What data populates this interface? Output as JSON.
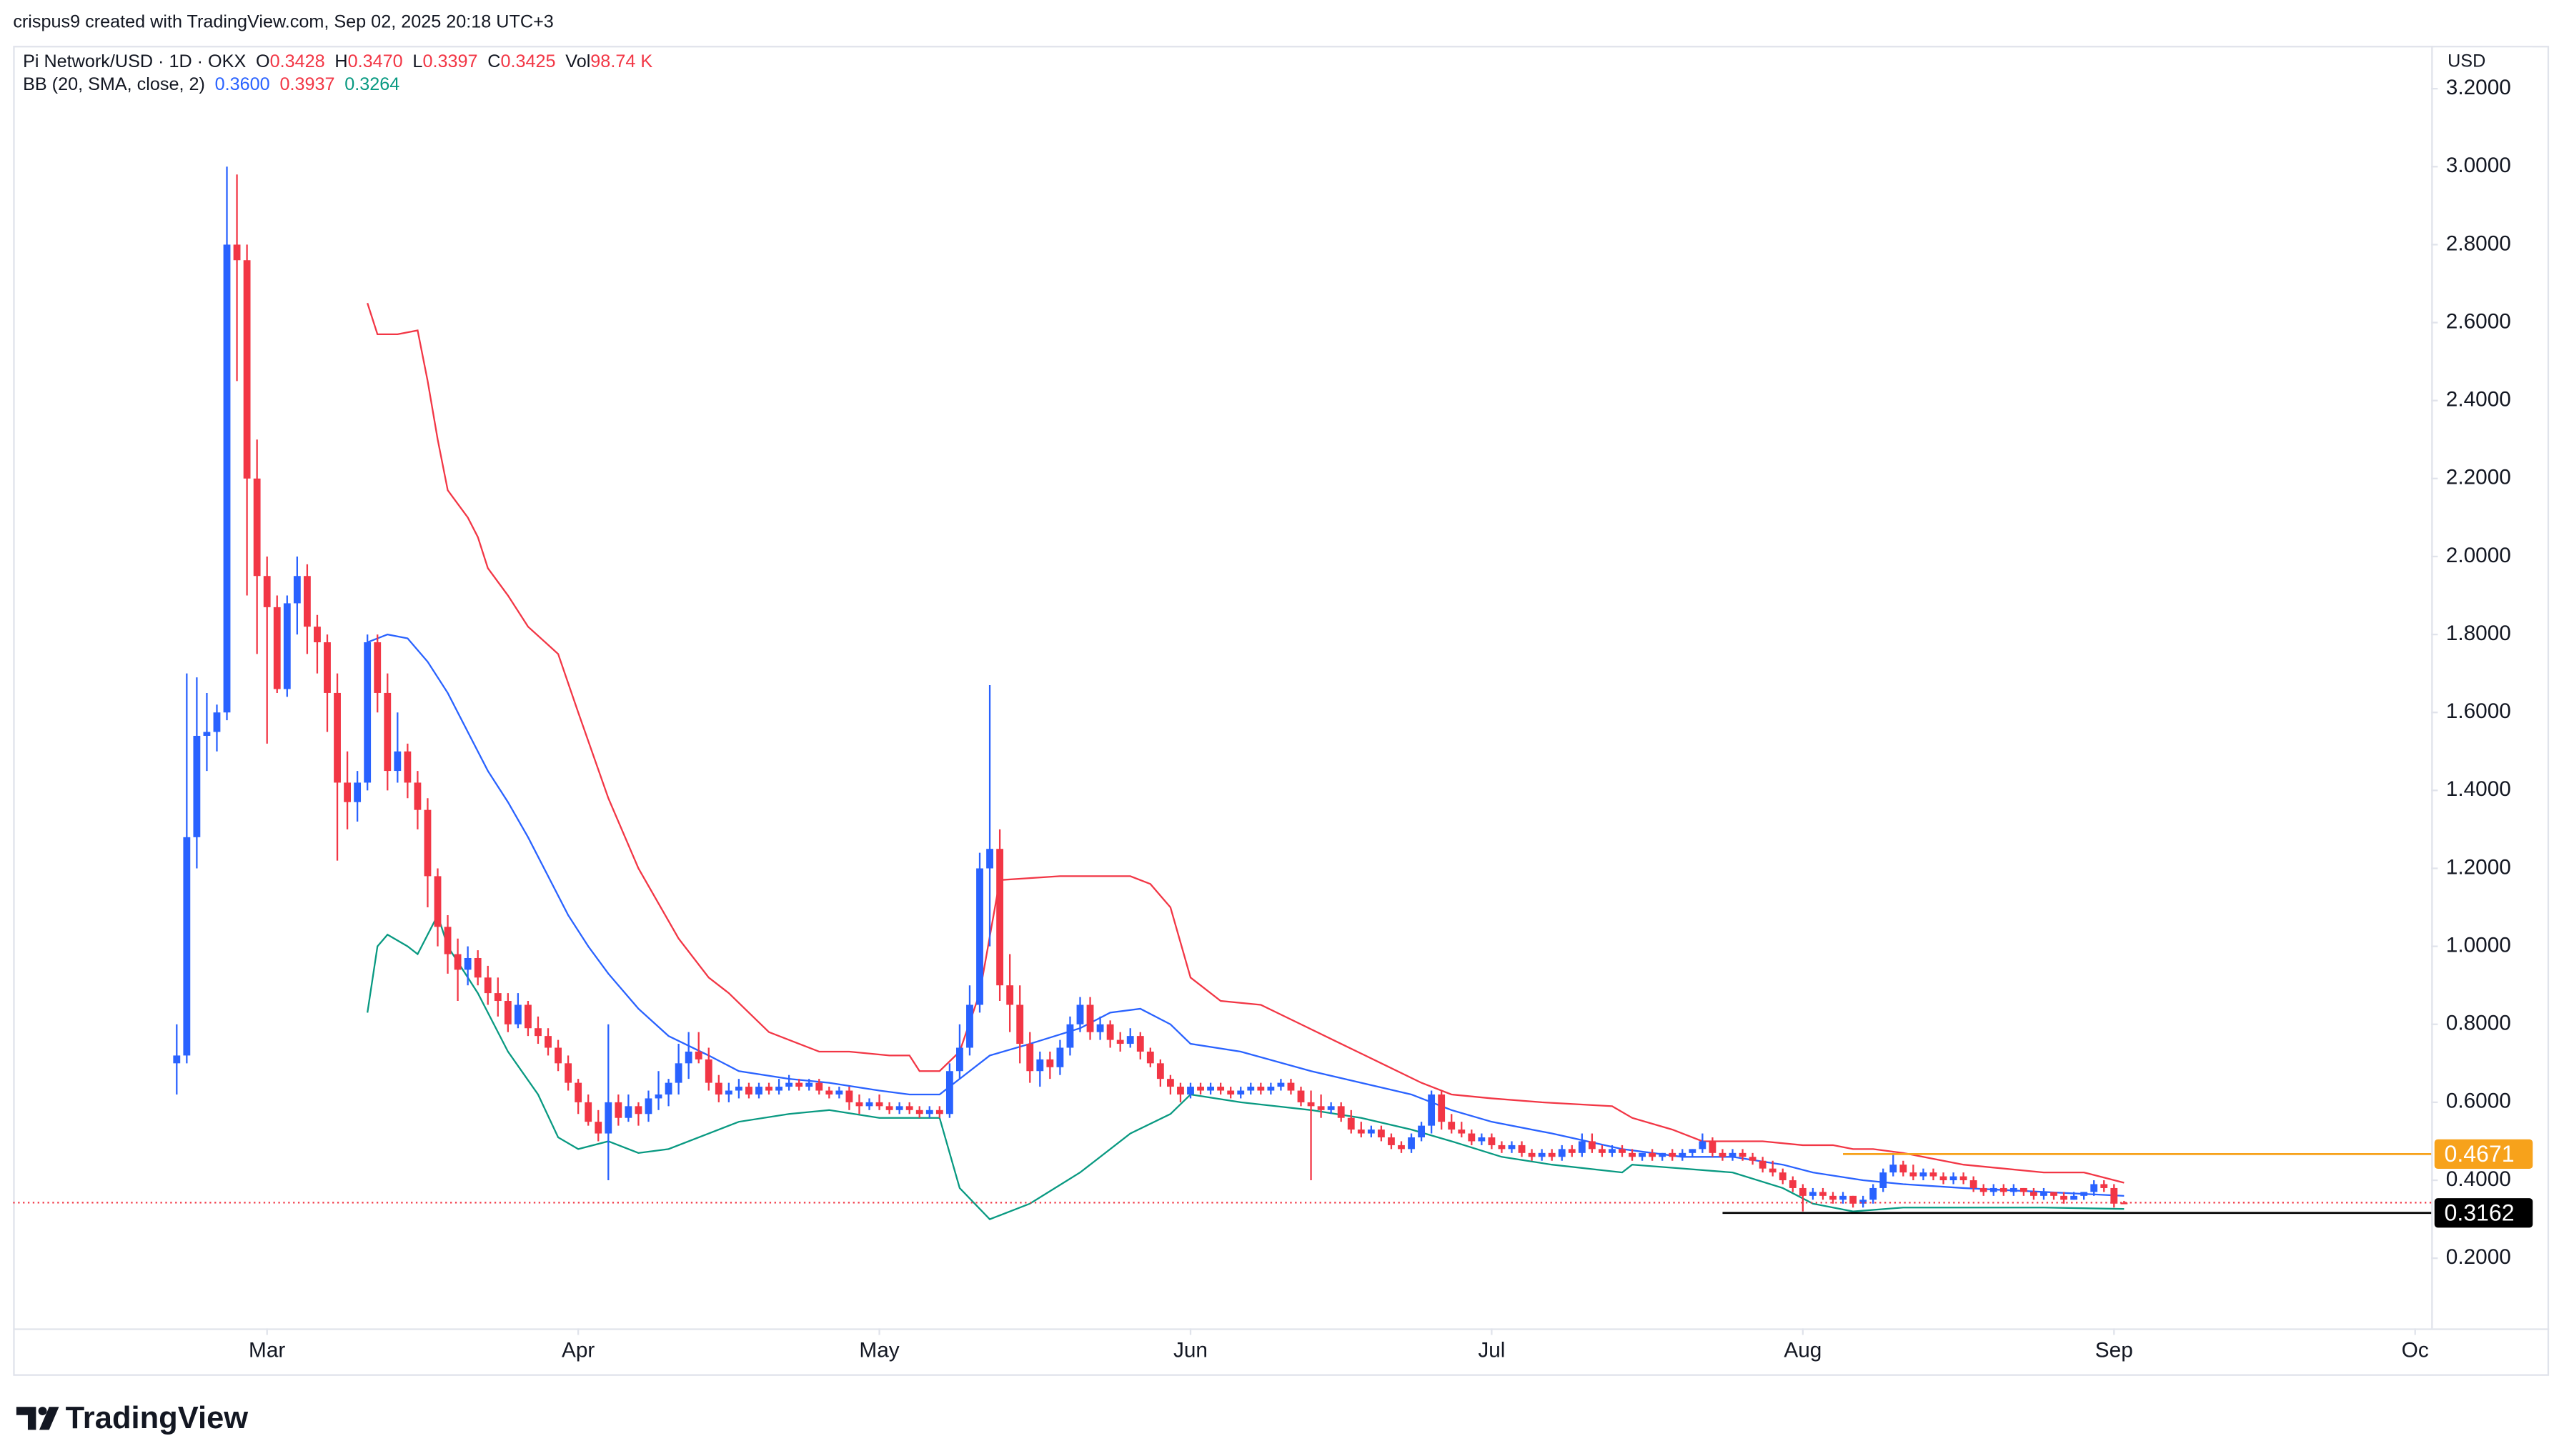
{
  "header": {
    "caption": "crispus9 created with TradingView.com, Sep 02, 2025 20:18 UTC+3",
    "symbol": "Pi Network/USD · 1D · OKX",
    "ohlcv": [
      {
        "label": "O",
        "value": "0.3428"
      },
      {
        "label": "H",
        "value": "0.3470"
      },
      {
        "label": "L",
        "value": "0.3397"
      },
      {
        "label": "C",
        "value": "0.3425"
      },
      {
        "label": "Vol",
        "value": "98.74 K"
      }
    ],
    "currency": "USD"
  },
  "brand": "TradingView",
  "chart_data": {
    "type": "candlestick",
    "up_color": "#2962ff",
    "down_color": "#f23645",
    "open": [
      0.7,
      0.72,
      1.28,
      1.54,
      1.55,
      1.6,
      2.8,
      2.76,
      2.2,
      1.95,
      1.87,
      1.66,
      1.88,
      1.95,
      1.82,
      1.78,
      1.65,
      1.42,
      1.37,
      1.42,
      1.78,
      1.65,
      1.45,
      1.5,
      1.42,
      1.35,
      1.18,
      1.05,
      0.98,
      0.94,
      0.97,
      0.92,
      0.88,
      0.86,
      0.8,
      0.85,
      0.79,
      0.77,
      0.74,
      0.7,
      0.65,
      0.6,
      0.55,
      0.52,
      0.6,
      0.56,
      0.59,
      0.57,
      0.61,
      0.62,
      0.65,
      0.7,
      0.73,
      0.71,
      0.65,
      0.62,
      0.63,
      0.64,
      0.62,
      0.64,
      0.63,
      0.64,
      0.65,
      0.64,
      0.65,
      0.63,
      0.62,
      0.63,
      0.6,
      0.59,
      0.6,
      0.59,
      0.58,
      0.59,
      0.58,
      0.57,
      0.58,
      0.57,
      0.68,
      0.74,
      0.85,
      1.2,
      1.25,
      0.9,
      0.85,
      0.75,
      0.68,
      0.71,
      0.69,
      0.74,
      0.8,
      0.85,
      0.78,
      0.8,
      0.76,
      0.75,
      0.77,
      0.73,
      0.7,
      0.66,
      0.64,
      0.62,
      0.64,
      0.63,
      0.64,
      0.63,
      0.62,
      0.63,
      0.64,
      0.63,
      0.64,
      0.65,
      0.63,
      0.6,
      0.59,
      0.58,
      0.59,
      0.56,
      0.53,
      0.52,
      0.53,
      0.51,
      0.49,
      0.48,
      0.51,
      0.54,
      0.62,
      0.55,
      0.53,
      0.52,
      0.5,
      0.51,
      0.49,
      0.48,
      0.49,
      0.47,
      0.46,
      0.47,
      0.46,
      0.48,
      0.47,
      0.5,
      0.48,
      0.47,
      0.48,
      0.47,
      0.46,
      0.47,
      0.46,
      0.47,
      0.46,
      0.47,
      0.48,
      0.5,
      0.47,
      0.46,
      0.47,
      0.46,
      0.45,
      0.43,
      0.42,
      0.4,
      0.38,
      0.36,
      0.37,
      0.36,
      0.35,
      0.36,
      0.34,
      0.35,
      0.38,
      0.42,
      0.44,
      0.42,
      0.41,
      0.42,
      0.41,
      0.4,
      0.41,
      0.4,
      0.38,
      0.37,
      0.38,
      0.37,
      0.38,
      0.37,
      0.36,
      0.37,
      0.36,
      0.35,
      0.36,
      0.37,
      0.39,
      0.38,
      0.3428
    ],
    "high": [
      0.8,
      1.7,
      1.69,
      1.65,
      1.62,
      3.0,
      2.98,
      2.8,
      2.3,
      2.0,
      1.9,
      1.9,
      2.0,
      1.98,
      1.85,
      1.8,
      1.7,
      1.5,
      1.45,
      1.8,
      1.8,
      1.7,
      1.6,
      1.52,
      1.45,
      1.38,
      1.2,
      1.08,
      1.02,
      1.0,
      0.99,
      0.95,
      0.92,
      0.88,
      0.88,
      0.86,
      0.82,
      0.79,
      0.76,
      0.72,
      0.66,
      0.62,
      0.58,
      0.8,
      0.62,
      0.62,
      0.6,
      0.63,
      0.68,
      0.66,
      0.75,
      0.78,
      0.78,
      0.74,
      0.67,
      0.65,
      0.66,
      0.65,
      0.65,
      0.65,
      0.66,
      0.67,
      0.66,
      0.66,
      0.66,
      0.64,
      0.64,
      0.64,
      0.62,
      0.61,
      0.62,
      0.6,
      0.6,
      0.6,
      0.59,
      0.59,
      0.59,
      0.7,
      0.8,
      0.9,
      1.24,
      1.67,
      1.3,
      0.98,
      0.9,
      0.78,
      0.73,
      0.73,
      0.76,
      0.82,
      0.87,
      0.87,
      0.82,
      0.81,
      0.78,
      0.79,
      0.78,
      0.74,
      0.71,
      0.67,
      0.65,
      0.65,
      0.65,
      0.65,
      0.65,
      0.64,
      0.64,
      0.65,
      0.65,
      0.65,
      0.66,
      0.66,
      0.64,
      0.63,
      0.62,
      0.6,
      0.6,
      0.58,
      0.55,
      0.54,
      0.54,
      0.52,
      0.5,
      0.52,
      0.55,
      0.63,
      0.63,
      0.57,
      0.55,
      0.53,
      0.52,
      0.52,
      0.5,
      0.5,
      0.5,
      0.48,
      0.48,
      0.48,
      0.49,
      0.49,
      0.52,
      0.52,
      0.49,
      0.49,
      0.49,
      0.48,
      0.47,
      0.48,
      0.47,
      0.48,
      0.48,
      0.48,
      0.52,
      0.51,
      0.48,
      0.48,
      0.48,
      0.47,
      0.46,
      0.45,
      0.43,
      0.41,
      0.39,
      0.38,
      0.38,
      0.37,
      0.37,
      0.36,
      0.36,
      0.39,
      0.43,
      0.47,
      0.45,
      0.44,
      0.43,
      0.43,
      0.42,
      0.42,
      0.42,
      0.41,
      0.39,
      0.39,
      0.39,
      0.39,
      0.38,
      0.38,
      0.38,
      0.37,
      0.37,
      0.37,
      0.37,
      0.4,
      0.4,
      0.39,
      0.347
    ],
    "low": [
      0.62,
      0.7,
      1.2,
      1.45,
      1.5,
      1.58,
      2.45,
      1.9,
      1.75,
      1.52,
      1.65,
      1.64,
      1.8,
      1.75,
      1.7,
      1.55,
      1.22,
      1.3,
      1.32,
      1.4,
      1.6,
      1.4,
      1.42,
      1.38,
      1.3,
      1.1,
      1.0,
      0.93,
      0.86,
      0.9,
      0.9,
      0.85,
      0.82,
      0.78,
      0.79,
      0.77,
      0.75,
      0.72,
      0.68,
      0.63,
      0.57,
      0.54,
      0.5,
      0.4,
      0.54,
      0.55,
      0.54,
      0.55,
      0.58,
      0.59,
      0.62,
      0.66,
      0.7,
      0.63,
      0.6,
      0.6,
      0.61,
      0.61,
      0.61,
      0.62,
      0.62,
      0.63,
      0.63,
      0.63,
      0.62,
      0.61,
      0.61,
      0.58,
      0.57,
      0.58,
      0.58,
      0.57,
      0.57,
      0.57,
      0.56,
      0.56,
      0.56,
      0.56,
      0.66,
      0.72,
      0.83,
      1.0,
      0.86,
      0.78,
      0.7,
      0.65,
      0.64,
      0.66,
      0.67,
      0.72,
      0.78,
      0.76,
      0.76,
      0.74,
      0.73,
      0.74,
      0.71,
      0.69,
      0.64,
      0.62,
      0.6,
      0.61,
      0.62,
      0.62,
      0.62,
      0.61,
      0.61,
      0.62,
      0.62,
      0.62,
      0.63,
      0.62,
      0.59,
      0.4,
      0.56,
      0.57,
      0.55,
      0.52,
      0.51,
      0.51,
      0.5,
      0.48,
      0.47,
      0.47,
      0.5,
      0.52,
      0.53,
      0.52,
      0.51,
      0.49,
      0.49,
      0.48,
      0.47,
      0.47,
      0.46,
      0.45,
      0.45,
      0.45,
      0.45,
      0.46,
      0.46,
      0.47,
      0.46,
      0.46,
      0.46,
      0.45,
      0.45,
      0.45,
      0.45,
      0.45,
      0.45,
      0.46,
      0.47,
      0.46,
      0.45,
      0.45,
      0.45,
      0.44,
      0.42,
      0.41,
      0.39,
      0.37,
      0.32,
      0.35,
      0.35,
      0.34,
      0.34,
      0.33,
      0.33,
      0.34,
      0.37,
      0.41,
      0.41,
      0.4,
      0.4,
      0.4,
      0.39,
      0.39,
      0.39,
      0.37,
      0.36,
      0.36,
      0.36,
      0.36,
      0.36,
      0.35,
      0.35,
      0.35,
      0.34,
      0.35,
      0.35,
      0.36,
      0.37,
      0.33,
      0.3397
    ],
    "close": [
      0.72,
      1.28,
      1.54,
      1.55,
      1.6,
      2.8,
      2.76,
      2.2,
      1.95,
      1.87,
      1.66,
      1.88,
      1.95,
      1.82,
      1.78,
      1.65,
      1.42,
      1.37,
      1.42,
      1.78,
      1.65,
      1.45,
      1.5,
      1.42,
      1.35,
      1.18,
      1.05,
      0.98,
      0.94,
      0.97,
      0.92,
      0.88,
      0.86,
      0.8,
      0.85,
      0.79,
      0.77,
      0.74,
      0.7,
      0.65,
      0.6,
      0.55,
      0.52,
      0.6,
      0.56,
      0.59,
      0.57,
      0.61,
      0.62,
      0.65,
      0.7,
      0.73,
      0.71,
      0.65,
      0.62,
      0.63,
      0.64,
      0.62,
      0.64,
      0.63,
      0.64,
      0.65,
      0.64,
      0.65,
      0.63,
      0.62,
      0.63,
      0.6,
      0.59,
      0.6,
      0.59,
      0.58,
      0.59,
      0.58,
      0.57,
      0.58,
      0.57,
      0.68,
      0.74,
      0.85,
      1.2,
      1.25,
      0.9,
      0.85,
      0.75,
      0.68,
      0.71,
      0.69,
      0.74,
      0.8,
      0.85,
      0.78,
      0.8,
      0.76,
      0.75,
      0.77,
      0.73,
      0.7,
      0.66,
      0.64,
      0.62,
      0.64,
      0.63,
      0.64,
      0.63,
      0.62,
      0.63,
      0.64,
      0.63,
      0.64,
      0.65,
      0.63,
      0.6,
      0.59,
      0.58,
      0.59,
      0.56,
      0.53,
      0.52,
      0.53,
      0.51,
      0.49,
      0.48,
      0.51,
      0.54,
      0.62,
      0.55,
      0.53,
      0.52,
      0.5,
      0.51,
      0.49,
      0.48,
      0.49,
      0.47,
      0.46,
      0.47,
      0.46,
      0.48,
      0.47,
      0.5,
      0.48,
      0.47,
      0.48,
      0.47,
      0.46,
      0.47,
      0.46,
      0.47,
      0.46,
      0.47,
      0.48,
      0.5,
      0.47,
      0.46,
      0.47,
      0.46,
      0.45,
      0.43,
      0.42,
      0.4,
      0.38,
      0.36,
      0.37,
      0.36,
      0.35,
      0.36,
      0.34,
      0.35,
      0.38,
      0.42,
      0.44,
      0.42,
      0.41,
      0.42,
      0.41,
      0.4,
      0.41,
      0.4,
      0.38,
      0.37,
      0.38,
      0.37,
      0.38,
      0.37,
      0.36,
      0.37,
      0.36,
      0.35,
      0.36,
      0.37,
      0.39,
      0.38,
      0.34,
      0.3425
    ],
    "indicator": {
      "label": "BB (20, SMA, close, 2)",
      "value_labels": [
        "0.3600",
        "0.3937",
        "0.3264"
      ],
      "series": [
        {
          "color": "#2962ff",
          "x": [
            19,
            21,
            23,
            25,
            27,
            29,
            31,
            33,
            35,
            37,
            39,
            41,
            43,
            46,
            49,
            53,
            56,
            61,
            65,
            70,
            73,
            76,
            78,
            81,
            85,
            90,
            93,
            96,
            99,
            101,
            106,
            113,
            118,
            123,
            127,
            131,
            137,
            144,
            150,
            155,
            160,
            163,
            168,
            172,
            178,
            186,
            194
          ],
          "values": [
            1.78,
            1.8,
            1.79,
            1.73,
            1.65,
            1.55,
            1.45,
            1.37,
            1.28,
            1.18,
            1.08,
            1.0,
            0.93,
            0.84,
            0.77,
            0.72,
            0.68,
            0.66,
            0.65,
            0.63,
            0.62,
            0.62,
            0.66,
            0.72,
            0.75,
            0.79,
            0.83,
            0.84,
            0.8,
            0.75,
            0.73,
            0.68,
            0.65,
            0.62,
            0.58,
            0.55,
            0.52,
            0.48,
            0.46,
            0.46,
            0.44,
            0.42,
            0.4,
            0.39,
            0.38,
            0.37,
            0.36
          ]
        },
        {
          "color": "#f23645",
          "x": [
            19,
            20,
            22,
            24,
            25,
            26,
            27,
            29,
            30,
            31,
            33,
            35,
            38,
            40,
            43,
            46,
            50,
            53,
            55,
            57,
            59,
            62,
            64,
            67,
            71,
            73,
            74,
            76,
            78,
            80,
            82,
            88,
            95,
            97,
            99,
            101,
            104,
            108,
            112,
            116,
            120,
            124,
            127,
            131,
            136,
            143,
            145,
            149,
            152,
            158,
            162,
            165,
            167,
            169,
            172,
            178,
            186,
            190,
            194
          ],
          "values": [
            2.65,
            2.57,
            2.57,
            2.58,
            2.45,
            2.3,
            2.17,
            2.1,
            2.05,
            1.97,
            1.9,
            1.82,
            1.75,
            1.6,
            1.38,
            1.2,
            1.02,
            0.92,
            0.88,
            0.83,
            0.78,
            0.75,
            0.73,
            0.73,
            0.72,
            0.72,
            0.68,
            0.68,
            0.73,
            0.88,
            1.17,
            1.18,
            1.18,
            1.16,
            1.1,
            0.92,
            0.86,
            0.85,
            0.8,
            0.75,
            0.7,
            0.65,
            0.62,
            0.61,
            0.6,
            0.59,
            0.56,
            0.53,
            0.5,
            0.5,
            0.49,
            0.49,
            0.48,
            0.48,
            0.47,
            0.44,
            0.42,
            0.42,
            0.3937
          ]
        },
        {
          "color": "#089981",
          "x": [
            19,
            20,
            21,
            23,
            24,
            26,
            27,
            30,
            33,
            36,
            38,
            40,
            43,
            46,
            49,
            53,
            56,
            61,
            65,
            70,
            76,
            78,
            81,
            85,
            90,
            95,
            99,
            101,
            106,
            113,
            118,
            123,
            127,
            132,
            137,
            144,
            145,
            150,
            155,
            160,
            163,
            167,
            172,
            186,
            194
          ],
          "values": [
            0.83,
            1.0,
            1.03,
            1.0,
            0.98,
            1.08,
            1.0,
            0.88,
            0.73,
            0.62,
            0.51,
            0.48,
            0.5,
            0.47,
            0.48,
            0.52,
            0.55,
            0.57,
            0.58,
            0.56,
            0.56,
            0.38,
            0.3,
            0.34,
            0.42,
            0.52,
            0.57,
            0.62,
            0.6,
            0.58,
            0.56,
            0.53,
            0.5,
            0.46,
            0.44,
            0.42,
            0.44,
            0.43,
            0.42,
            0.38,
            0.34,
            0.32,
            0.33,
            0.33,
            0.3264
          ]
        }
      ]
    },
    "levels": [
      {
        "value": 0.4671,
        "label": "0.4671",
        "color": "#f7a21b",
        "x_start": 166
      },
      {
        "value": 0.3162,
        "label": "0.3162",
        "color": "#000000",
        "x_start": 154
      }
    ],
    "xlim": [
      -16.3,
      224.6
    ],
    "xticks": [
      {
        "value": 9,
        "label": "Mar"
      },
      {
        "value": 40,
        "label": "Apr"
      },
      {
        "value": 70,
        "label": "May"
      },
      {
        "value": 101,
        "label": "Jun"
      },
      {
        "value": 131,
        "label": "Jul"
      },
      {
        "value": 162,
        "label": "Aug"
      },
      {
        "value": 193,
        "label": "Sep"
      },
      {
        "value": 223,
        "label": "Oc"
      }
    ],
    "ylim": [
      0.02,
      3.31
    ],
    "yticks": [
      {
        "value": 0.2,
        "label": "0.2000"
      },
      {
        "value": 0.4,
        "label": "0.4000"
      },
      {
        "value": 0.6,
        "label": "0.6000"
      },
      {
        "value": 0.8,
        "label": "0.8000"
      },
      {
        "value": 1.0,
        "label": "1.0000"
      },
      {
        "value": 1.2,
        "label": "1.2000"
      },
      {
        "value": 1.4,
        "label": "1.4000"
      },
      {
        "value": 1.6,
        "label": "1.6000"
      },
      {
        "value": 1.8,
        "label": "1.8000"
      },
      {
        "value": 2.0,
        "label": "2.0000"
      },
      {
        "value": 2.2,
        "label": "2.2000"
      },
      {
        "value": 2.4,
        "label": "2.4000"
      },
      {
        "value": 2.6,
        "label": "2.6000"
      },
      {
        "value": 2.8,
        "label": "2.8000"
      },
      {
        "value": 3.0,
        "label": "3.0000"
      },
      {
        "value": 3.2,
        "label": "3.2000"
      }
    ],
    "grid": false
  }
}
